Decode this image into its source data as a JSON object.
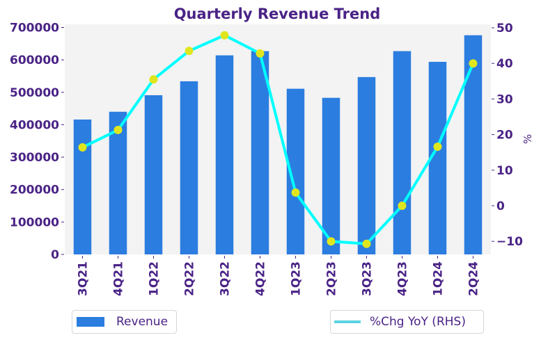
{
  "chart_data": {
    "type": "bar",
    "title": "Quarterly Revenue Trend",
    "categories": [
      "3Q21",
      "4Q21",
      "1Q22",
      "2Q22",
      "3Q22",
      "4Q22",
      "1Q23",
      "2Q23",
      "3Q23",
      "4Q23",
      "1Q24",
      "2Q24"
    ],
    "series": [
      {
        "name": "Revenue",
        "type": "bar",
        "axis": "left",
        "color": "#2b7de0",
        "values": [
          416000,
          440000,
          491000,
          534000,
          614000,
          627000,
          511000,
          483000,
          547000,
          627000,
          594000,
          676000
        ]
      },
      {
        "name": "%Chg YoY (RHS)",
        "type": "line",
        "axis": "right",
        "color": "#00ffff",
        "marker_color": "#dfe61e",
        "legend_color": "#5bd3e0",
        "values": [
          16.4,
          21.3,
          35.5,
          43.5,
          47.9,
          42.8,
          3.7,
          -10.0,
          -10.7,
          0.0,
          16.6,
          40.0
        ]
      }
    ],
    "xlabel": "",
    "ylabel": "",
    "ylabel_right": "%",
    "ylim": [
      0,
      700000
    ],
    "ylim_right": [
      -14,
      50
    ],
    "yticks": [
      0,
      100000,
      200000,
      300000,
      400000,
      500000,
      600000,
      700000
    ],
    "yticks_right": [
      -10,
      0,
      10,
      20,
      30,
      40,
      50
    ],
    "ytick_labels_right": [
      "−10",
      "0",
      "10",
      "20",
      "30",
      "40",
      "50"
    ],
    "grid": false,
    "plot_background": "#f3f3f3",
    "text_color": "#4a2386",
    "legend": [
      {
        "label": "Revenue",
        "placement": "bottom-left"
      },
      {
        "label": "%Chg YoY (RHS)",
        "placement": "bottom-right"
      }
    ]
  }
}
